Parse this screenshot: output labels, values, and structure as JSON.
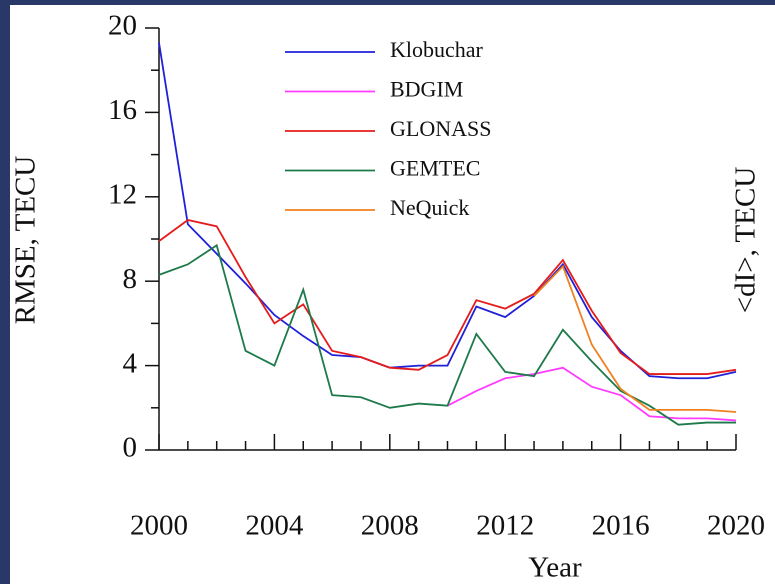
{
  "chart_data": {
    "type": "line",
    "x": [
      2000,
      2001,
      2002,
      2003,
      2004,
      2005,
      2006,
      2007,
      2008,
      2009,
      2010,
      2011,
      2012,
      2013,
      2014,
      2015,
      2016,
      2017,
      2018,
      2019,
      2020
    ],
    "series": [
      {
        "name": "Klobuchar",
        "color": "#2020d8",
        "values": [
          19.3,
          10.7,
          9.3,
          7.9,
          6.4,
          5.4,
          4.5,
          4.4,
          3.9,
          4.0,
          4.0,
          6.8,
          6.3,
          7.3,
          8.8,
          6.3,
          4.7,
          3.5,
          3.4,
          3.4,
          3.7
        ]
      },
      {
        "name": "BDGIM",
        "color": "#ff3cff",
        "values": [
          null,
          null,
          null,
          null,
          null,
          null,
          null,
          null,
          null,
          null,
          2.1,
          2.8,
          3.4,
          3.6,
          3.9,
          3.0,
          2.6,
          1.6,
          1.5,
          1.5,
          1.4
        ]
      },
      {
        "name": "GLONASS",
        "color": "#e41c1c",
        "values": [
          9.9,
          10.9,
          10.6,
          8.2,
          6.0,
          6.9,
          4.7,
          4.4,
          3.9,
          3.8,
          4.5,
          7.1,
          6.7,
          7.4,
          9.0,
          6.6,
          4.6,
          3.6,
          3.6,
          3.6,
          3.8
        ]
      },
      {
        "name": "GEMTEC",
        "color": "#1e7a4a",
        "values": [
          8.3,
          8.8,
          9.7,
          4.7,
          4.0,
          7.6,
          2.6,
          2.5,
          2.0,
          2.2,
          2.1,
          5.5,
          3.7,
          3.5,
          5.7,
          4.2,
          2.8,
          2.1,
          1.2,
          1.3,
          1.3
        ]
      },
      {
        "name": "NeQuick",
        "color": "#f08020",
        "values": [
          null,
          null,
          null,
          null,
          null,
          null,
          null,
          null,
          null,
          null,
          null,
          null,
          null,
          7.3,
          8.7,
          5.0,
          2.9,
          1.9,
          1.9,
          1.9,
          1.8
        ]
      }
    ],
    "x_label": "Year",
    "y_label": "RMSE, TECU",
    "y2_label": "<dI>, TECU",
    "xlim": [
      2000,
      2020
    ],
    "xticks": [
      2000,
      2004,
      2008,
      2012,
      2016,
      2020
    ],
    "ylim": [
      0,
      20
    ],
    "yticks": [
      0,
      4,
      8,
      12,
      16,
      20
    ],
    "legend": "top-center"
  }
}
